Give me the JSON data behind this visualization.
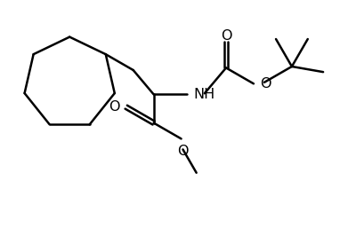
{
  "bg_color": "#ffffff",
  "line_color": "#000000",
  "lw": 1.8,
  "fs": 11.5,
  "fig_w": 3.82,
  "fig_h": 2.66,
  "dpi": 100,
  "xlim": [
    0,
    10
  ],
  "ylim": [
    0,
    7
  ]
}
